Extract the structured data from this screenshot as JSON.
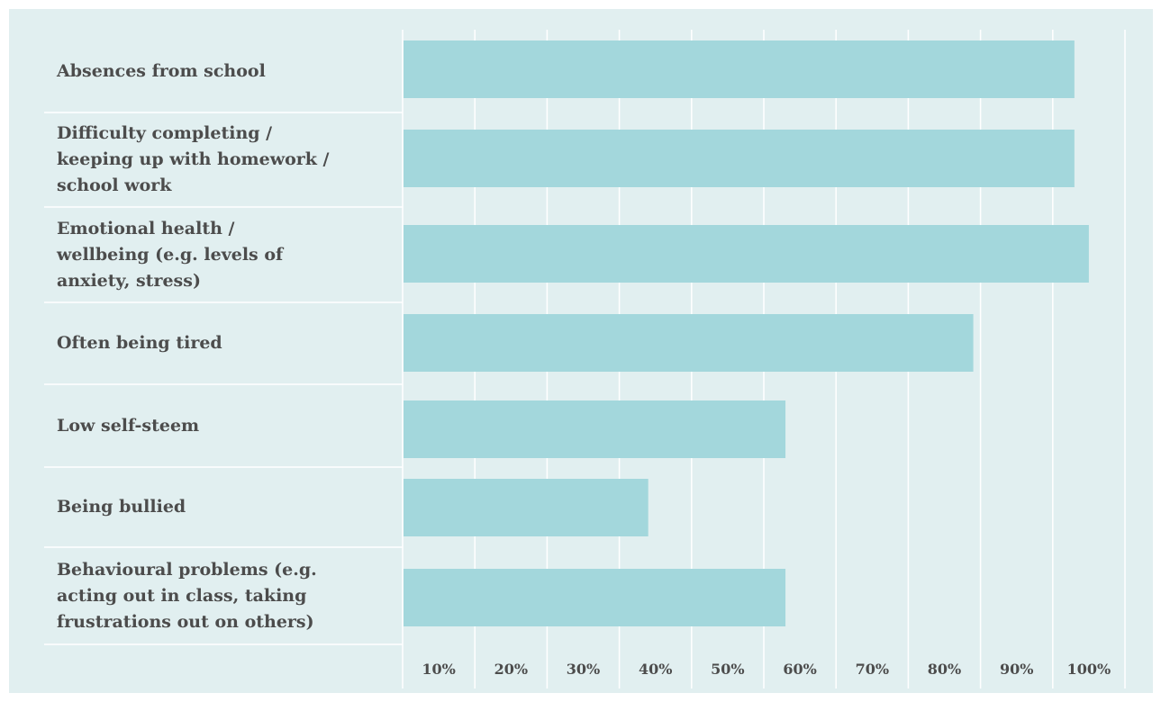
{
  "colors": {
    "panel_background": "#e1eff0",
    "bar_fill": "#a3d7dc",
    "grid_line": "#ffffff",
    "text": "#4c4c4c"
  },
  "chart_data": {
    "type": "bar",
    "orientation": "horizontal",
    "categories": [
      "Absences from school",
      "Difficulty completing / keeping up with homework / school work",
      "Emotional health / wellbeing (e.g. levels of anxiety, stress)",
      "Often being tired",
      "Low self-steem",
      "Being bullied",
      "Behavioural problems (e.g. acting out in class, taking frustrations out on others)"
    ],
    "category_lines": [
      [
        "Absences from school"
      ],
      [
        "Difficulty completing /",
        "keeping up with homework /",
        "school work"
      ],
      [
        "Emotional health /",
        "wellbeing (e.g. levels of",
        "anxiety, stress)"
      ],
      [
        "Often being tired"
      ],
      [
        "Low self-steem"
      ],
      [
        "Being bullied"
      ],
      [
        "Behavioural problems (e.g.",
        "acting out in class, taking",
        "frustrations out on others)"
      ]
    ],
    "values": [
      93,
      93,
      95,
      79,
      53,
      34,
      53
    ],
    "xlim": [
      0,
      100
    ],
    "ticks": [
      "10%",
      "20%",
      "30%",
      "40%",
      "50%",
      "60%",
      "70%",
      "80%",
      "90%",
      "100%"
    ],
    "grid": true,
    "legend": "none"
  }
}
